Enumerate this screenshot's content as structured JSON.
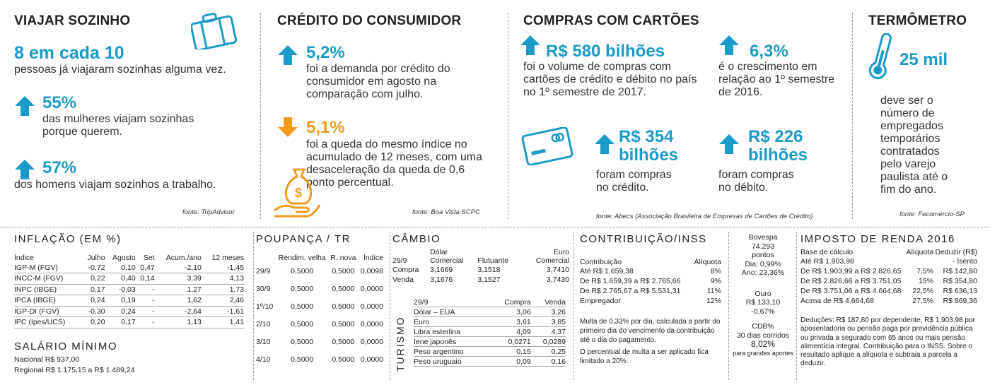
{
  "viajar": {
    "title": "VIAJAR SOZINHO",
    "headline": "8 em cada 10",
    "headline_text": "pessoas já viajaram sozinhas alguma vez.",
    "stat1_value": "55%",
    "stat1_text": "das mulheres viajam sozinhas porque querem.",
    "stat2_value": "57%",
    "stat2_text": "dos homens viajam sozinhos a trabalho.",
    "source": "fonte: TripAdvisor"
  },
  "credito": {
    "title": "CRÉDITO DO CONSUMIDOR",
    "stat1_value": "5,2%",
    "stat1_text": "foi a demanda por crédito do consumidor em agosto na comparação com julho.",
    "stat2_value": "5,1%",
    "stat2_text": "foi a queda do mesmo índice no acumulado de 12 meses, com uma desaceleração da queda de 0,6 ponto percentual.",
    "source": "fonte: Boa Vista SCPC"
  },
  "compras": {
    "title": "COMPRAS COM CARTÕES",
    "stat1_value": "R$ 580 bilhões",
    "stat1_text": "foi o volume de compras com cartões de crédito e débito no país no 1º semestre de 2017.",
    "stat2_value": "6,3%",
    "stat2_text": "é o crescimento em relação ao 1º semestre de 2016.",
    "stat3_value": "R$ 354 bilhões",
    "stat3_text": "foram compras no crédito.",
    "stat4_value": "R$ 226 bilhões",
    "stat4_text": "foram compras no débito.",
    "source": "fonte: Abecs (Associação Brasileira de Empresas de Cartões de Crédito)"
  },
  "termometro": {
    "title": "TERMÔMETRO",
    "value": "25 mil",
    "text": "deve ser o número de empregados temporários contratados pelo varejo paulista até o fim do ano.",
    "source": "fonte: Fecomércio-SP"
  },
  "inflacao": {
    "title": "INFLAÇÃO (EM %)",
    "headers": [
      "Índice",
      "Julho",
      "Agosto",
      "Set",
      "Acum./ano",
      "12 meses"
    ],
    "rows": [
      [
        "IGP-M (FGV)",
        "-0,72",
        "0,10",
        "0,47",
        "-2,10",
        "-1,45"
      ],
      [
        "INCC-M (FGV)",
        "0,22",
        "0,40",
        "0,14",
        "3,39",
        "4,13"
      ],
      [
        "INPC (IBGE)",
        "0,17",
        "-0,03",
        "-",
        "1,27",
        "1,73"
      ],
      [
        "IPCA (IBGE)",
        "0,24",
        "0,19",
        "-",
        "1,62",
        "2,46"
      ],
      [
        "IGP-DI (FGV)",
        "-0,30",
        "0,24",
        "-",
        "-2,64",
        "-1,61"
      ],
      [
        "IPC (Ipes/UCS)",
        "0,20",
        "0,17",
        "-",
        "1,13",
        "1,41"
      ]
    ]
  },
  "salario": {
    "title": "SALÁRIO MÍNIMO",
    "nacional": "Nacional R$ 937,00",
    "regional": "Regional R$ 1.175,15 a R$ 1.489,24"
  },
  "poupanca": {
    "title": "POUPANÇA / TR",
    "headers": [
      "",
      "Rendim. velha",
      "R. nova",
      "Índice"
    ],
    "rows": [
      [
        "29/9",
        "0,5000",
        "0,5000",
        "0,0098"
      ],
      [
        "30/9",
        "0,5000",
        "0,5000",
        "0,0000"
      ],
      [
        "1º/10",
        "0,5000",
        "0,5000",
        "0,0000"
      ],
      [
        "2/10",
        "0,5000",
        "0,5000",
        "0,0000"
      ],
      [
        "3/10",
        "0,5000",
        "0,5000",
        "0,0000"
      ],
      [
        "4/10",
        "0,5000",
        "0,5000",
        "0,0000"
      ]
    ]
  },
  "cambio": {
    "title": "CÂMBIO",
    "h_dolar": "Dólar",
    "h_euro": "Euro",
    "h_date": "29/9",
    "h_comercial": "Comercial",
    "h_flutuante": "Flutuante",
    "h_comercial2": "Comercial",
    "rows": [
      [
        "Compra",
        "3,1669",
        "3,1518",
        "3,7410"
      ],
      [
        "Venda",
        "3,1676",
        "3,1527",
        "3,7430"
      ]
    ],
    "turismo_label": "TURISMO",
    "t_date": "29/9",
    "t_compra": "Compra",
    "t_venda": "Venda",
    "turismo_rows": [
      [
        "Dólar – EUA",
        "3,06",
        "3,26"
      ],
      [
        "Euro",
        "3,61",
        "3,85"
      ],
      [
        "Libra esterlina",
        "4,09",
        "4,37"
      ],
      [
        "Iene japonês",
        "0,0271",
        "0,0289"
      ],
      [
        "Peso argentino",
        "0,15",
        "0,25"
      ],
      [
        "Peso uruguaio",
        "0,09",
        "0,16"
      ]
    ]
  },
  "inss": {
    "title": "CONTRIBUIÇÃO/INSS",
    "h_contrib": "Contribuição",
    "h_aliq": "Alíquota",
    "rows": [
      [
        "Até R$ 1.659,38",
        "8%"
      ],
      [
        "De R$ 1.659,39 a R$ 2.765,66",
        "9%"
      ],
      [
        "De R$ 2.765,67 a R$ 5.531,31",
        "11%"
      ],
      [
        "Empregador",
        "12%"
      ]
    ],
    "note1": "Multa de 0,33% por dia, calculada a partir do primeiro dia do vencimento da contribuição até o dia do pagamento.",
    "note2": "O percentual de multa a ser aplicado fica limitado a 20%."
  },
  "mercado": {
    "bovespa_label": "Bovespa",
    "bovespa_value": "74.293",
    "bovespa_unit": "pontos",
    "bovespa_dia": "Dia: 0,99%",
    "bovespa_ano": "Ano: 23,36%",
    "ouro_label": "Ouro",
    "ouro_value": "R$ 133,10",
    "ouro_var": "-0,67%",
    "cdb_label": "CDB%",
    "cdb_sub": "30 dias corridos",
    "cdb_value": "8,02%",
    "cdb_note": "para grandes aportes"
  },
  "ir": {
    "title": "IMPOSTO DE RENDA 2016",
    "h_base": "Base de cálculo",
    "h_aliq": "Alíquota",
    "h_deduzir": "Deduzir (R$)",
    "rows": [
      [
        "Até R$ 1.903,98",
        "",
        "- Isento"
      ],
      [
        "De R$ 1.903,99 a R$ 2.826,65",
        "7,5%",
        "R$ 142,80"
      ],
      [
        "De R$ 2.826,66 a R$ 3.751,05",
        "15%",
        "R$ 354,80"
      ],
      [
        "De R$ 3.751,06 a R$ 4.664,68",
        "22,5%",
        "R$ 636,13"
      ],
      [
        "Acima de R$ 4.664,68",
        "27,5%",
        "R$ 869,36"
      ]
    ],
    "note": "Deduções: R$ 187,80 por dependente, R$ 1.903,98 por aposentadoria ou pensão paga por previdência pública ou privada a segurado com 65 anos ou mais pensão alimentícia integral. Contribuição para o INSS. Sobre o resultado aplique a alíquota e subtraia a parcela a deduzir."
  },
  "colors": {
    "blue": "#1a9bc8",
    "orange": "#f39b1f"
  },
  "icons": [
    "suitcase-icon",
    "arrow-up-icon",
    "arrow-down-icon",
    "money-bag-hand-icon",
    "credit-card-icon",
    "thermometer-icon"
  ]
}
